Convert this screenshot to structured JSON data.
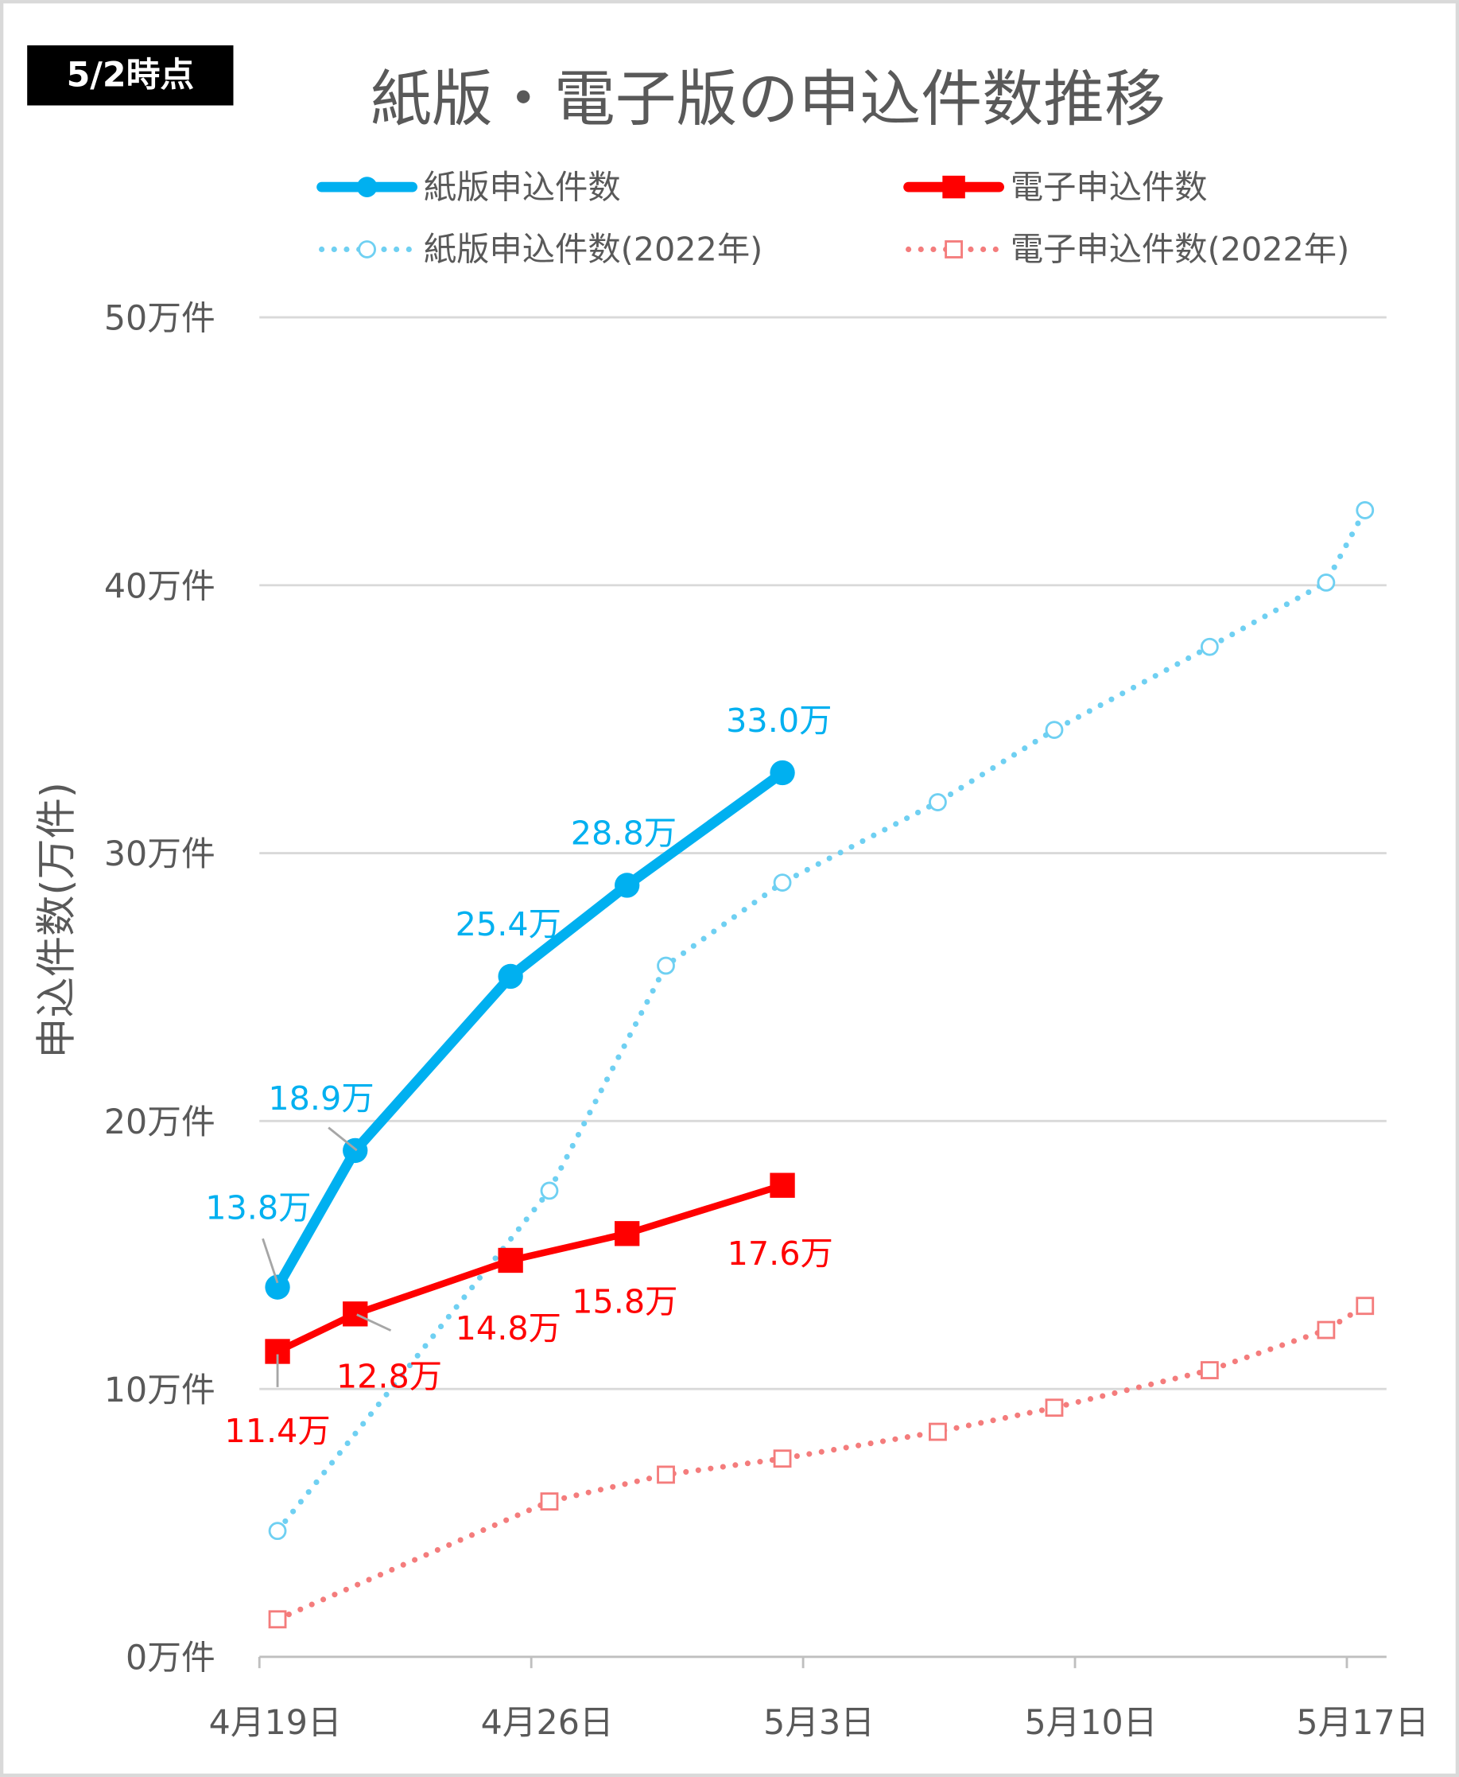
{
  "badge": "5/2時点",
  "chart_data": {
    "type": "line",
    "title": "紙版・電子版の申込件数推移",
    "ylabel": "申込件数(万件)",
    "xlabel": "",
    "ylim": [
      0,
      50
    ],
    "yticks": [
      "0万件",
      "10万件",
      "20万件",
      "30万件",
      "40万件",
      "50万件"
    ],
    "xticks": [
      "4月19日",
      "4月26日",
      "5月3日",
      "5月10日",
      "5月17日"
    ],
    "grid": true,
    "legend_position": "top",
    "series": [
      {
        "name": "紙版申込件数",
        "color": "#00b0f0",
        "style": "solid",
        "marker": "circle",
        "x": [
          "4/19",
          "4/21",
          "4/25",
          "4/28",
          "5/2"
        ],
        "values": [
          13.8,
          18.9,
          25.4,
          28.8,
          33.0
        ],
        "labels": [
          "13.8万",
          "18.9万",
          "25.4万",
          "28.8万",
          "33.0万"
        ]
      },
      {
        "name": "電子申込件数",
        "color": "#ff0000",
        "style": "solid",
        "marker": "square",
        "x": [
          "4/19",
          "4/21",
          "4/25",
          "4/28",
          "5/2"
        ],
        "values": [
          11.4,
          12.8,
          14.8,
          15.8,
          17.6
        ],
        "labels": [
          "11.4万",
          "12.8万",
          "14.8万",
          "15.8万",
          "17.6万"
        ]
      },
      {
        "name": "紙版申込件数(2022年)",
        "color": "#6fd0f2",
        "style": "dotted",
        "marker": "open-circle",
        "x": [
          "4/19",
          "4/26",
          "4/29",
          "5/2",
          "5/6",
          "5/9",
          "5/13",
          "5/16",
          "5/17"
        ],
        "values": [
          4.7,
          17.4,
          25.8,
          28.9,
          31.9,
          34.6,
          37.7,
          40.1,
          42.8
        ]
      },
      {
        "name": "電子申込件数(2022年)",
        "color": "#f47c7c",
        "style": "dotted",
        "marker": "open-square",
        "x": [
          "4/19",
          "4/26",
          "4/29",
          "5/2",
          "5/6",
          "5/9",
          "5/13",
          "5/16",
          "5/17"
        ],
        "values": [
          1.4,
          5.8,
          6.8,
          7.4,
          8.4,
          9.3,
          10.7,
          12.2,
          13.1
        ]
      }
    ]
  }
}
